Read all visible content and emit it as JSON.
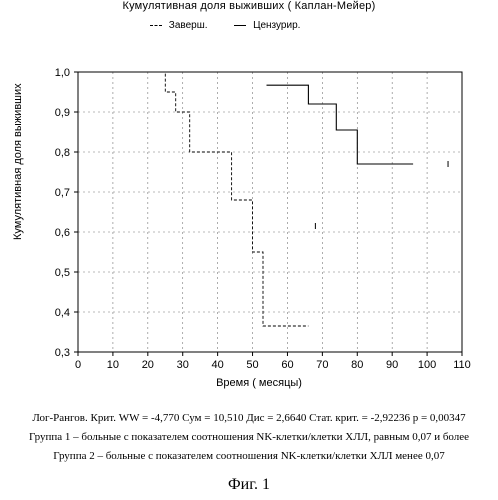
{
  "chart_data": {
    "type": "line",
    "title": "Кумулятивная доля выживших ( Каплан-Мейер)",
    "legend": [
      {
        "label": "Заверш.",
        "style": "dashed"
      },
      {
        "label": "Цензурир.",
        "style": "solid"
      }
    ],
    "xlabel": "Время ( месяцы)",
    "ylabel": "Кумулятивная доля выживших",
    "xlim": [
      0,
      110
    ],
    "ylim": [
      0.3,
      1.0
    ],
    "x_ticks": [
      0,
      10,
      20,
      30,
      40,
      50,
      60,
      70,
      80,
      90,
      100,
      110
    ],
    "y_ticks": [
      "0,3",
      "0,4",
      "0,5",
      "0,6",
      "0,7",
      "0,8",
      "0,9",
      "1,0"
    ],
    "y_tick_values": [
      0.3,
      0.4,
      0.5,
      0.6,
      0.7,
      0.8,
      0.9,
      1.0
    ],
    "legend_position": "top",
    "grid": true,
    "series": [
      {
        "style": "dashed",
        "points": [
          [
            14,
            1.0
          ],
          [
            25,
            1.0
          ],
          [
            25,
            0.95
          ],
          [
            28,
            0.95
          ],
          [
            28,
            0.9
          ],
          [
            32,
            0.9
          ],
          [
            32,
            0.8
          ],
          [
            44,
            0.8
          ],
          [
            44,
            0.68
          ],
          [
            50,
            0.68
          ],
          [
            50,
            0.55
          ],
          [
            53,
            0.55
          ],
          [
            53,
            0.365
          ],
          [
            66,
            0.365
          ]
        ]
      },
      {
        "style": "solid",
        "points": [
          [
            54,
            0.967
          ],
          [
            66,
            0.967
          ],
          [
            66,
            0.92
          ],
          [
            74,
            0.92
          ],
          [
            74,
            0.855
          ],
          [
            80,
            0.855
          ],
          [
            80,
            0.77
          ],
          [
            96,
            0.77
          ]
        ]
      }
    ],
    "censored_marks": [
      [
        68,
        0.615
      ],
      [
        106,
        0.77
      ]
    ]
  },
  "notes": {
    "line1": "Лог-Рангов. Крит. WW = -4,770 Сум = 10,510 Дис = 2,6640 Стат. крит. = -2,92236 p = 0,00347",
    "line2": "Группа 1 – больные с показателем соотношения NK-клетки/клетки ХЛЛ, равным 0,07 и более",
    "line3": "Группа 2 – больные с показателем соотношения NK-клетки/клетки ХЛЛ менее 0,07"
  },
  "figure_caption": "Фиг. 1"
}
